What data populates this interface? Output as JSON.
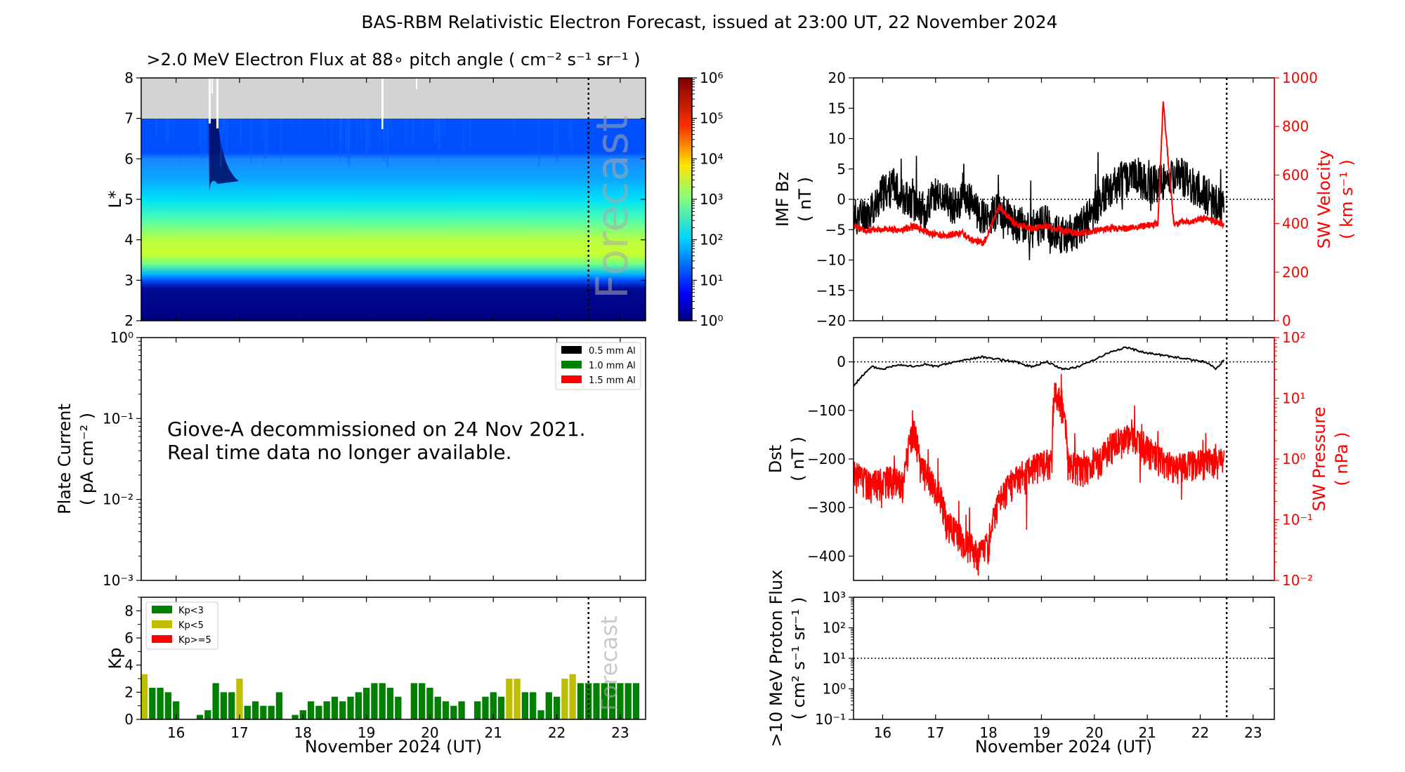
{
  "figure_title": "BAS-RBM Relativistic Electron Forecast, issued at 23:00 UT, 22 November 2024",
  "time_axis": {
    "label": "November 2024 (UT)",
    "ticks": [
      "16",
      "17",
      "18",
      "19",
      "20",
      "21",
      "22",
      "23"
    ],
    "range_days": [
      15.45,
      23.4
    ],
    "forecast_start_day": 22.5
  },
  "forecast_label": "Forecast",
  "chart_data": [
    {
      "id": "electron_flux",
      "type": "heatmap",
      "title": ">2.0 MeV Electron Flux at 88∘ pitch angle ( cm⁻² s⁻¹ sr⁻¹ )",
      "ylabel": "L*",
      "ylim": [
        2,
        8
      ],
      "yticks": [
        "2",
        "3",
        "4",
        "5",
        "6",
        "7",
        "8"
      ],
      "no_data_above_L": 7,
      "colorbar": {
        "scale": "log",
        "range": [
          1,
          1000000
        ],
        "ticks": [
          "10⁰",
          "10¹",
          "10²",
          "10³",
          "10⁴",
          "10⁵",
          "10⁶"
        ]
      },
      "profile_log10_flux": [
        {
          "L": 2.0,
          "v": 0.05
        },
        {
          "L": 3.0,
          "v": 0.15
        },
        {
          "L": 3.15,
          "v": 0.6
        },
        {
          "L": 3.3,
          "v": 1.6
        },
        {
          "L": 3.6,
          "v": 2.8
        },
        {
          "L": 4.0,
          "v": 3.15
        },
        {
          "L": 4.5,
          "v": 3.05
        },
        {
          "L": 5.0,
          "v": 2.8
        },
        {
          "L": 5.5,
          "v": 2.45
        },
        {
          "L": 6.0,
          "v": 2.05
        },
        {
          "L": 6.5,
          "v": 1.8
        },
        {
          "L": 7.0,
          "v": 1.6
        }
      ]
    },
    {
      "id": "plate_current",
      "type": "line",
      "ylabel": "Plate Current",
      "yunit": "( pA cm⁻² )",
      "yscale": "log",
      "ylim": [
        0.001,
        1
      ],
      "yticks": [
        "10⁻³",
        "10⁻²",
        "10⁻¹",
        "10⁰"
      ],
      "legend_position": "upper-right",
      "series": [
        {
          "name": "0.5 mm Al",
          "color": "#000000",
          "values": []
        },
        {
          "name": "1.0 mm Al",
          "color": "#008000",
          "values": []
        },
        {
          "name": "1.5 mm Al",
          "color": "#ff0000",
          "values": []
        }
      ],
      "notice_lines": [
        "Giove-A decommissioned on 24 Nov 2021.",
        "Real time data no longer available."
      ]
    },
    {
      "id": "kp",
      "type": "bar",
      "ylabel": "Kp",
      "ylim": [
        0,
        9
      ],
      "yticks": [
        "0",
        "2",
        "4",
        "6",
        "8"
      ],
      "legend_position": "upper-left",
      "legend": [
        {
          "name": "Kp<3",
          "color": "#008000"
        },
        {
          "name": "Kp<5",
          "color": "#bfbf00"
        },
        {
          "name": "Kp>=5",
          "color": "#ff0000"
        }
      ],
      "bin_hours": 3,
      "start_day": 15.5,
      "values": [
        3.33,
        2.33,
        2.33,
        2.0,
        1.33,
        0.0,
        0.0,
        0.33,
        0.67,
        2.67,
        2.0,
        2.0,
        3.0,
        1.0,
        1.33,
        1.0,
        1.0,
        2.0,
        0.0,
        0.33,
        0.67,
        1.33,
        1.0,
        1.33,
        1.67,
        1.33,
        1.67,
        2.0,
        2.33,
        2.67,
        2.67,
        2.33,
        1.67,
        0.0,
        2.67,
        2.67,
        2.33,
        1.67,
        1.33,
        1.0,
        1.33,
        0.0,
        1.33,
        1.67,
        2.0,
        1.67,
        3.0,
        3.0,
        2.0,
        2.0,
        0.67,
        2.0,
        1.67,
        3.0,
        3.33,
        2.67,
        2.67,
        2.67,
        2.67,
        2.67,
        2.67,
        2.67,
        2.67
      ]
    },
    {
      "id": "imf_sw",
      "type": "line",
      "ylabel": "IMF Bz",
      "yunit": "( nT )",
      "ylim": [
        -20,
        20
      ],
      "yticks": [
        "−20",
        "−15",
        "−10",
        "−5",
        "0",
        "5",
        "10",
        "15",
        "20"
      ],
      "y2label": "SW Velocity",
      "y2unit": "( km s⁻¹ )",
      "y2lim": [
        0,
        1000
      ],
      "y2ticks": [
        "0",
        "200",
        "400",
        "600",
        "800",
        "1000"
      ],
      "reference_line": 0,
      "series": [
        {
          "name": "IMF Bz",
          "color": "#000000",
          "axis": "left",
          "x": [
            15.45,
            15.8,
            16.0,
            16.2,
            16.5,
            16.8,
            17.0,
            17.3,
            17.6,
            17.9,
            18.2,
            18.5,
            18.8,
            19.1,
            19.4,
            19.7,
            19.9,
            20.2,
            20.5,
            20.8,
            21.0,
            21.3,
            21.6,
            21.9,
            22.2,
            22.45
          ],
          "y": [
            -3,
            -2,
            1,
            2,
            0,
            -2,
            1,
            -1,
            0,
            -3,
            -2,
            -4,
            -5,
            -4,
            -6,
            -5,
            -3,
            1,
            3,
            4,
            2,
            3,
            4,
            2,
            0,
            -2
          ]
        },
        {
          "name": "SW Velocity",
          "color": "#ff0000",
          "axis": "right",
          "x": [
            15.45,
            15.7,
            16.0,
            16.3,
            16.6,
            16.9,
            17.2,
            17.5,
            17.7,
            17.9,
            18.0,
            18.2,
            18.5,
            18.8,
            19.1,
            19.4,
            19.7,
            20.0,
            20.3,
            20.6,
            20.9,
            21.2,
            21.3,
            21.5,
            21.8,
            22.1,
            22.45
          ],
          "y": [
            390,
            370,
            380,
            370,
            390,
            360,
            350,
            360,
            330,
            320,
            360,
            470,
            400,
            380,
            390,
            370,
            360,
            370,
            380,
            380,
            390,
            400,
            900,
            400,
            410,
            420,
            400
          ]
        }
      ]
    },
    {
      "id": "dst_swp",
      "type": "line",
      "ylabel": "Dst",
      "yunit": "( nT )",
      "ylim": [
        -450,
        50
      ],
      "yticks": [
        "−400",
        "−300",
        "−200",
        "−100",
        "0"
      ],
      "y2label": "SW Pressure",
      "y2unit": "( nPa )",
      "y2scale": "log",
      "y2lim": [
        0.01,
        100
      ],
      "y2ticks": [
        "10⁻²",
        "10⁻¹",
        "10⁰",
        "10¹",
        "10²"
      ],
      "reference_line": 0,
      "series": [
        {
          "name": "Dst",
          "color": "#000000",
          "axis": "left",
          "x": [
            15.45,
            15.6,
            15.8,
            16.0,
            16.3,
            16.6,
            16.8,
            17.0,
            17.3,
            17.6,
            17.9,
            18.2,
            18.5,
            18.8,
            19.1,
            19.4,
            19.7,
            20.0,
            20.3,
            20.6,
            20.9,
            21.2,
            21.5,
            21.8,
            22.1,
            22.3,
            22.45
          ],
          "y": [
            -50,
            -30,
            -10,
            -15,
            -5,
            -10,
            -5,
            -10,
            -2,
            5,
            10,
            5,
            0,
            -10,
            0,
            -15,
            -10,
            5,
            20,
            30,
            20,
            15,
            10,
            5,
            0,
            -15,
            5
          ]
        },
        {
          "name": "SW Pressure",
          "color": "#ff0000",
          "axis": "right",
          "x": [
            15.45,
            15.8,
            16.1,
            16.4,
            16.6,
            16.7,
            16.9,
            17.2,
            17.5,
            17.8,
            18.0,
            18.3,
            18.6,
            18.9,
            19.2,
            19.25,
            19.5,
            19.8,
            20.1,
            20.4,
            20.7,
            21.0,
            21.3,
            21.6,
            21.9,
            22.2,
            22.45
          ],
          "y": [
            0.6,
            0.4,
            0.5,
            0.4,
            3.0,
            0.8,
            0.5,
            0.1,
            0.05,
            0.03,
            0.04,
            0.3,
            0.6,
            0.8,
            1.0,
            15.0,
            0.9,
            0.7,
            1.0,
            2.0,
            2.5,
            1.5,
            1.0,
            0.8,
            0.9,
            1.0,
            1.0
          ]
        }
      ]
    },
    {
      "id": "proton_flux",
      "type": "line",
      "ylabel": ">10 MeV Proton Flux",
      "yunit": "( cm² s⁻¹ sr⁻¹ )",
      "yscale": "log",
      "ylim": [
        0.1,
        1000
      ],
      "yticks": [
        "10⁻¹",
        "10⁰",
        "10¹",
        "10²",
        "10³"
      ],
      "reference_line": 10,
      "series": []
    }
  ]
}
